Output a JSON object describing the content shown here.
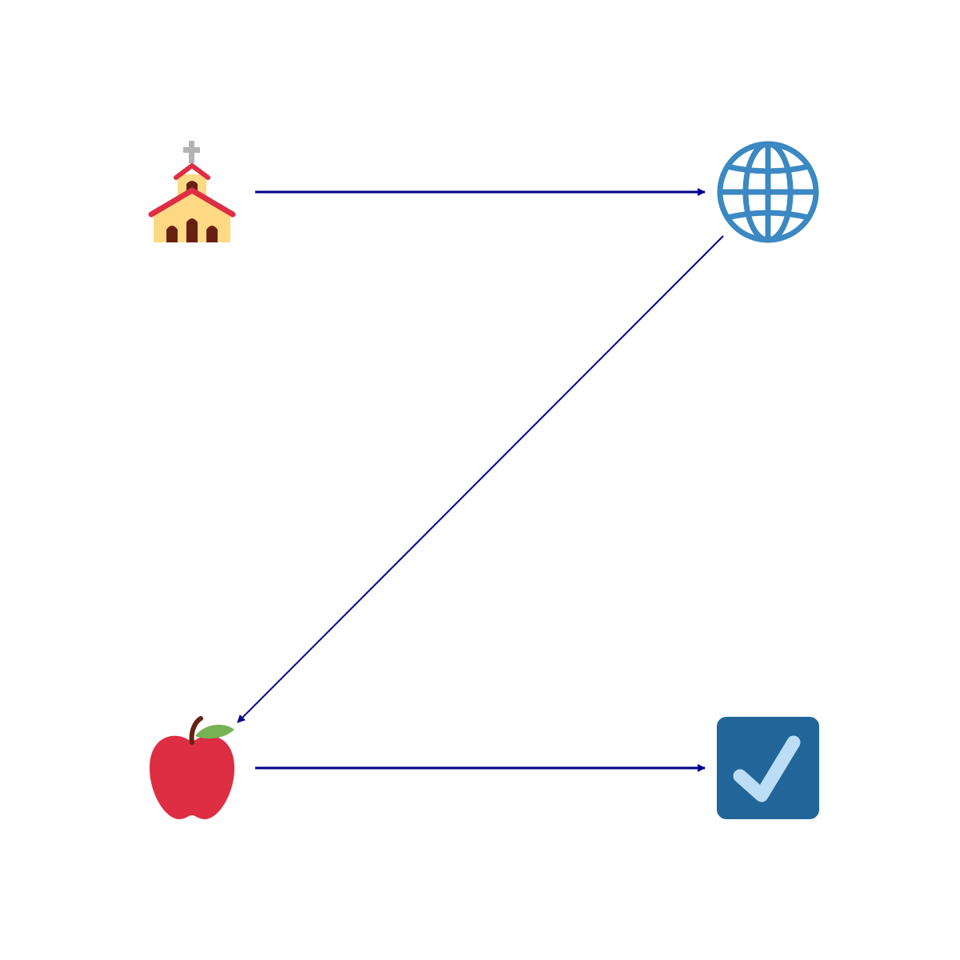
{
  "diagram": {
    "type": "flow",
    "nodes": [
      {
        "id": "church",
        "icon": "church-icon"
      },
      {
        "id": "globe",
        "icon": "globe-with-meridians-icon"
      },
      {
        "id": "apple",
        "icon": "red-apple-icon"
      },
      {
        "id": "check",
        "icon": "check-box-icon"
      }
    ],
    "edges": [
      {
        "from": "church",
        "to": "globe"
      },
      {
        "from": "globe",
        "to": "apple"
      },
      {
        "from": "apple",
        "to": "check"
      }
    ],
    "colors": {
      "arrow": "#00008b",
      "church_roof": "#dd2e44",
      "church_wall": "#ffd983",
      "church_door": "#662113",
      "cross": "#b3b3b3",
      "globe": "#3b88c3",
      "apple": "#dd2e44",
      "apple_leaf": "#77b255",
      "apple_stem": "#662113",
      "check_box": "#226699",
      "check_mark": "#bbddf5"
    }
  }
}
